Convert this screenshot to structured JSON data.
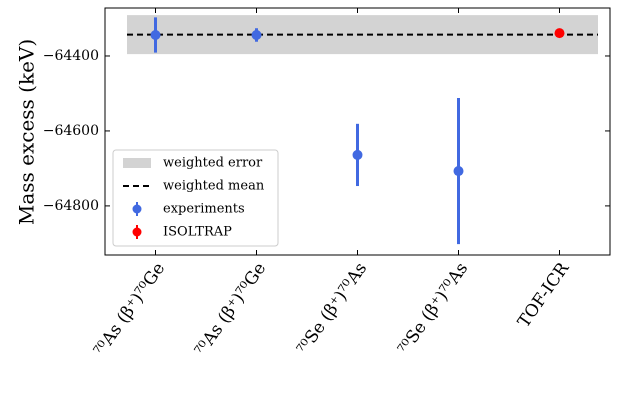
{
  "chart_data": {
    "type": "errorbar",
    "ylabel": "Mass excess (keV)",
    "categories": [
      "⁷⁰As (β⁺)⁷⁰Ge",
      "⁷⁰As (β⁺)⁷⁰Ge",
      "⁷⁰Se (β⁺)⁷⁰As",
      "⁷⁰Se (β⁺)⁷⁰As",
      "TOF-ICR"
    ],
    "series": [
      {
        "name": "experiments",
        "color": "#4169e1",
        "values": [
          -64344,
          -64344,
          -64664,
          -64707,
          null
        ],
        "errors": [
          47,
          18,
          83,
          195,
          null
        ]
      },
      {
        "name": "ISOLTRAP",
        "color": "#ff0000",
        "values": [
          null,
          null,
          null,
          null,
          -64339
        ],
        "errors": [
          null,
          null,
          null,
          null,
          5
        ]
      }
    ],
    "reference": {
      "mean": {
        "name": "weighted mean",
        "value": -64343,
        "color": "#000000"
      },
      "error": {
        "name": "weighted error",
        "value": 52,
        "color": "#d3d3d3"
      }
    },
    "ylim": [
      -64931,
      -64272
    ],
    "yticks": [
      {
        "value": -64400,
        "label": "−64400"
      },
      {
        "value": -64600,
        "label": "−64600"
      },
      {
        "value": -64800,
        "label": "−64800"
      }
    ],
    "legend": "lower left"
  }
}
